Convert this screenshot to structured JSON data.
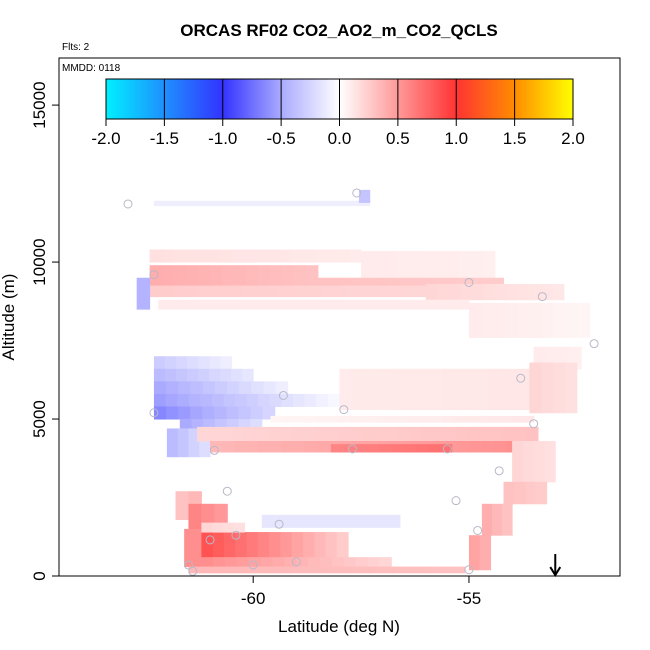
{
  "chart_data": {
    "type": "heatmap",
    "title": "ORCAS RF02 CO2_AO2_m_CO2_QCLS",
    "flights_note": "Flts: 2",
    "date_note": "MMDD: 0118",
    "xlabel": "Latitude (deg N)",
    "ylabel": "Altitude (m)",
    "xlim": [
      -64.5,
      -51.5
    ],
    "ylim": [
      0,
      16500
    ],
    "x_ticks": [
      -60,
      -55
    ],
    "y_ticks": [
      0,
      5000,
      10000,
      15000
    ],
    "colorbar": {
      "range": [
        -2,
        2
      ],
      "ticks": [
        "-2.0",
        "-1.5",
        "-1.0",
        "-0.5",
        "0.0",
        "0.5",
        "1.0",
        "1.5",
        "2.0"
      ],
      "colors": {
        "-2.0": "#00f0ff",
        "-1.5": "#1e90ff",
        "-1.0": "#3333ff",
        "-0.5": "#aaaaff",
        "0.0": "#ffffff",
        "0.5": "#ff9999",
        "1.0": "#ff3333",
        "1.5": "#ff8c00",
        "2.0": "#ffff00"
      }
    },
    "band_cell": {
      "dx": 0.27,
      "dy": 280
    },
    "bands": [
      {
        "x0": -62.3,
        "x1": -57.3,
        "y0": 11800,
        "y1": 11950,
        "v0": -0.1,
        "v1": -0.1
      },
      {
        "x0": -57.55,
        "x1": -57.3,
        "y0": 11900,
        "y1": 12300,
        "v0": -0.35,
        "v1": -0.35
      },
      {
        "x0": -62.4,
        "x1": -57.5,
        "y0": 10000,
        "y1": 10400,
        "v0": 0.15,
        "v1": 0.1
      },
      {
        "x0": -57.5,
        "x1": -54.4,
        "y0": 10350,
        "y1": 9200,
        "v0": 0.1,
        "v1": 0.08
      },
      {
        "x0": -62.4,
        "x1": -58.5,
        "y0": 9250,
        "y1": 9900,
        "v0": 0.4,
        "v1": 0.3
      },
      {
        "x0": -58.5,
        "x1": -54.2,
        "y0": 9250,
        "y1": 9500,
        "v0": 0.3,
        "v1": 0.25
      },
      {
        "x0": -62.4,
        "x1": -56.0,
        "y0": 8900,
        "y1": 9250,
        "v0": 0.25,
        "v1": 0.2
      },
      {
        "x0": -56.0,
        "x1": -52.8,
        "y0": 9300,
        "y1": 8800,
        "v0": 0.2,
        "v1": 0.12
      },
      {
        "x0": -62.2,
        "x1": -55.0,
        "y0": 8500,
        "y1": 8800,
        "v0": 0.1,
        "v1": 0.1
      },
      {
        "x0": -55.0,
        "x1": -52.2,
        "y0": 8700,
        "y1": 7600,
        "v0": 0.1,
        "v1": 0.05
      },
      {
        "x0": -62.7,
        "x1": -62.4,
        "y0": 8500,
        "y1": 9500,
        "v0": -0.45,
        "v1": -0.45
      },
      {
        "x0": -62.3,
        "x1": -60.5,
        "y0": 6600,
        "y1": 7000,
        "v0": -0.3,
        "v1": -0.1
      },
      {
        "x0": -62.3,
        "x1": -60.0,
        "y0": 6200,
        "y1": 6600,
        "v0": -0.4,
        "v1": -0.15
      },
      {
        "x0": -62.3,
        "x1": -59.2,
        "y0": 5800,
        "y1": 6200,
        "v0": -0.5,
        "v1": -0.1
      },
      {
        "x0": -62.3,
        "x1": -58.0,
        "y0": 5400,
        "y1": 5800,
        "v0": -0.55,
        "v1": -0.05
      },
      {
        "x0": -62.3,
        "x1": -59.5,
        "y0": 5000,
        "y1": 5400,
        "v0": -0.65,
        "v1": -0.25
      },
      {
        "x0": -61.7,
        "x1": -59.8,
        "y0": 4700,
        "y1": 5000,
        "v0": -0.5,
        "v1": -0.2
      },
      {
        "x0": -62.0,
        "x1": -61.0,
        "y0": 3800,
        "y1": 4700,
        "v0": -0.4,
        "v1": -0.2
      },
      {
        "x0": -58.0,
        "x1": -53.5,
        "y0": 5300,
        "y1": 6600,
        "v0": 0.1,
        "v1": 0.12
      },
      {
        "x0": -53.5,
        "x1": -52.4,
        "y0": 6600,
        "y1": 7300,
        "v0": 0.1,
        "v1": 0.08
      },
      {
        "x0": -59.6,
        "x1": -53.5,
        "y0": 5100,
        "y1": 4900,
        "v0": 0.05,
        "v1": 0.12
      },
      {
        "x0": -61.3,
        "x1": -53.4,
        "y0": 4300,
        "y1": 4750,
        "v0": 0.2,
        "v1": 0.3
      },
      {
        "x0": -61.0,
        "x1": -53.6,
        "y0": 3950,
        "y1": 4300,
        "v0": 0.35,
        "v1": 0.55
      },
      {
        "x0": -58.2,
        "x1": -55.4,
        "y0": 3950,
        "y1": 4200,
        "v0": 0.6,
        "v1": 0.7
      },
      {
        "x0": -54.0,
        "x1": -53.0,
        "y0": 4300,
        "y1": 3000,
        "v0": 0.2,
        "v1": 0.15
      },
      {
        "x0": -53.6,
        "x1": -52.5,
        "y0": 5200,
        "y1": 6800,
        "v0": 0.2,
        "v1": 0.15
      },
      {
        "x0": -54.2,
        "x1": -53.2,
        "y0": 2300,
        "y1": 3000,
        "v0": 0.3,
        "v1": 0.25
      },
      {
        "x0": -54.7,
        "x1": -54.0,
        "y0": 1300,
        "y1": 2300,
        "v0": 0.4,
        "v1": 0.3
      },
      {
        "x0": -55.0,
        "x1": -54.5,
        "y0": 200,
        "y1": 1300,
        "v0": 0.45,
        "v1": 0.4
      },
      {
        "x0": -61.8,
        "x1": -61.2,
        "y0": 1800,
        "y1": 2700,
        "v0": 0.3,
        "v1": 0.35
      },
      {
        "x0": -61.5,
        "x1": -60.6,
        "y0": 1400,
        "y1": 2300,
        "v0": 0.6,
        "v1": 0.5
      },
      {
        "x0": -61.6,
        "x1": -61.2,
        "y0": 300,
        "y1": 1500,
        "v0": 0.55,
        "v1": 0.55
      },
      {
        "x0": -61.2,
        "x1": -57.8,
        "y0": 600,
        "y1": 1400,
        "v0": 0.85,
        "v1": 0.25
      },
      {
        "x0": -61.2,
        "x1": -56.8,
        "y0": 300,
        "y1": 600,
        "v0": 0.55,
        "v1": 0.2
      },
      {
        "x0": -61.5,
        "x1": -55.1,
        "y0": 100,
        "y1": 300,
        "v0": 0.35,
        "v1": 0.3
      },
      {
        "x0": -59.8,
        "x1": -56.6,
        "y0": 1550,
        "y1": 1950,
        "v0": -0.15,
        "v1": -0.15
      },
      {
        "x0": -61.2,
        "x1": -60.2,
        "y0": 1400,
        "y1": 1700,
        "v0": 0.2,
        "v1": 0.15
      }
    ],
    "flight_points": [
      [
        -62.9,
        11850
      ],
      [
        -57.6,
        12200
      ],
      [
        -62.3,
        9600
      ],
      [
        -55.0,
        9350
      ],
      [
        -53.3,
        8900
      ],
      [
        -52.1,
        7400
      ],
      [
        -53.8,
        6300
      ],
      [
        -59.3,
        5750
      ],
      [
        -57.9,
        5300
      ],
      [
        -62.3,
        5200
      ],
      [
        -53.5,
        4850
      ],
      [
        -57.7,
        4050
      ],
      [
        -55.5,
        4050
      ],
      [
        -60.9,
        4000
      ],
      [
        -54.3,
        3350
      ],
      [
        -60.6,
        2700
      ],
      [
        -55.3,
        2400
      ],
      [
        -59.4,
        1650
      ],
      [
        -54.8,
        1450
      ],
      [
        -60.4,
        1300
      ],
      [
        -61.0,
        1150
      ],
      [
        -59.0,
        450
      ],
      [
        -60.0,
        350
      ],
      [
        -61.5,
        350
      ],
      [
        -61.4,
        150
      ],
      [
        -55.0,
        200
      ]
    ],
    "arrow": {
      "x": -53.0,
      "y_top": 700,
      "y_bottom": 30
    }
  }
}
